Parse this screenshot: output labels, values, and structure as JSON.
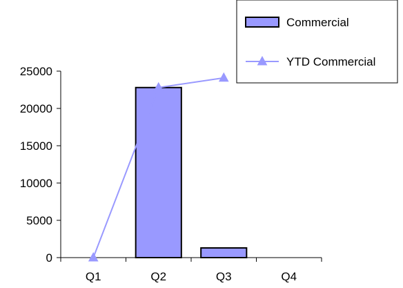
{
  "chart_data": {
    "type": "bar",
    "categories": [
      "Q1",
      "Q2",
      "Q3",
      "Q4"
    ],
    "series": [
      {
        "name": "Commercial",
        "kind": "bar",
        "values": [
          0,
          22800,
          1300,
          0
        ]
      },
      {
        "name": "YTD Commercial",
        "kind": "line",
        "marker": "triangle",
        "values": [
          0,
          22800,
          24100,
          null
        ]
      }
    ],
    "ylim": [
      0,
      25000
    ],
    "yticks": [
      0,
      5000,
      10000,
      15000,
      20000,
      25000
    ],
    "grid": false,
    "legend_position": "top-right"
  },
  "colors": {
    "bar_fill": "#9999ff",
    "bar_stroke": "#000000",
    "line": "#9999ff",
    "axis": "#000000"
  }
}
